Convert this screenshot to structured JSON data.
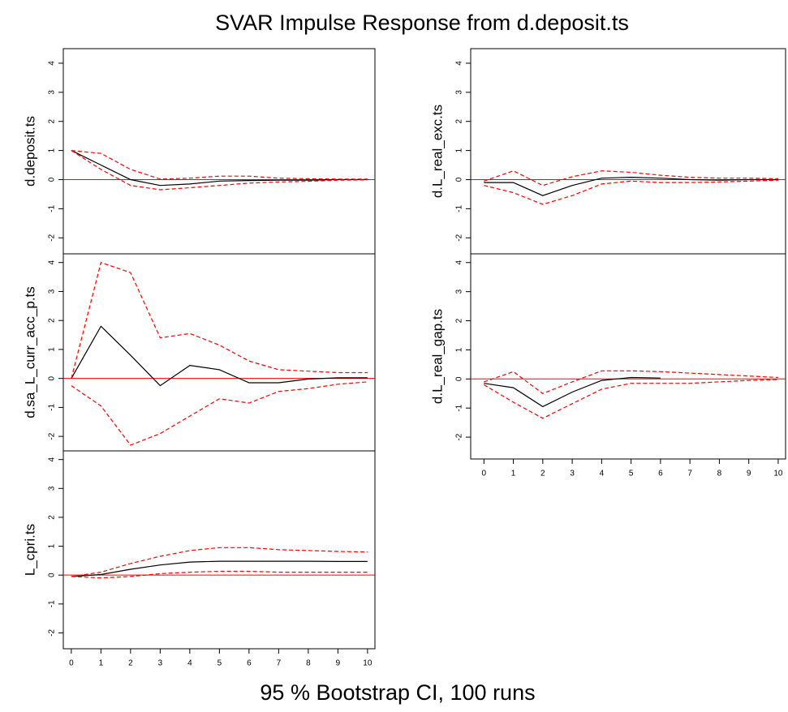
{
  "title": "SVAR Impulse Response from d.deposit.ts",
  "footer": "95 % Bootstrap CI,  100 runs",
  "chart_data": [
    {
      "type": "line",
      "ylabel": "d.deposit.ts",
      "x": [
        0,
        1,
        2,
        3,
        4,
        5,
        6,
        7,
        8,
        9,
        10
      ],
      "xlim": [
        -0.27,
        10.25
      ],
      "ylim": [
        -2.55,
        4.5
      ],
      "yticks": [
        -2,
        -1,
        0,
        1,
        2,
        3,
        4
      ],
      "hline": 0,
      "hline_color": "#ff0000",
      "series": [
        {
          "color": "#000000",
          "values": [
            1,
            0.5,
            0.0,
            -0.2,
            -0.15,
            -0.05,
            -0.03,
            -0.02,
            -0.02,
            0,
            0
          ]
        },
        {
          "color": "#ff0000",
          "linestyle": "dashed",
          "values": [
            1,
            0.9,
            0.35,
            0.02,
            0.05,
            0.12,
            0.12,
            0.05,
            0.03,
            0.02,
            0.02
          ]
        },
        {
          "color": "#ff0000",
          "linestyle": "dashed",
          "values": [
            1,
            0.35,
            -0.2,
            -0.35,
            -0.28,
            -0.2,
            -0.12,
            -0.08,
            -0.06,
            -0.02,
            -0.01
          ]
        }
      ]
    },
    {
      "type": "line",
      "ylabel": "d.sa_L_curr_acc_p.ts",
      "x": [
        0,
        1,
        2,
        3,
        4,
        5,
        6,
        7,
        8,
        9,
        10
      ],
      "xlim": [
        -0.27,
        10.25
      ],
      "ylim": [
        -2.5,
        4.3
      ],
      "yticks": [
        -2,
        -1,
        0,
        1,
        2,
        3,
        4
      ],
      "hline": 0,
      "hline_color": "#ff0000",
      "series": [
        {
          "color": "#000000",
          "values": [
            0,
            1.8,
            0.8,
            -0.25,
            0.45,
            0.3,
            -0.15,
            -0.15,
            -0.02,
            0.02,
            0.02
          ]
        },
        {
          "color": "#ff0000",
          "linestyle": "dashed",
          "values": [
            0,
            4.0,
            3.65,
            1.4,
            1.55,
            1.15,
            0.6,
            0.3,
            0.25,
            0.2,
            0.2
          ]
        },
        {
          "color": "#ff0000",
          "linestyle": "dashed",
          "values": [
            -0.25,
            -0.95,
            -2.3,
            -1.9,
            -1.3,
            -0.7,
            -0.85,
            -0.45,
            -0.35,
            -0.2,
            -0.12
          ]
        }
      ]
    },
    {
      "type": "line",
      "ylabel": "L_cpri.ts",
      "x": [
        0,
        1,
        2,
        3,
        4,
        5,
        6,
        7,
        8,
        9,
        10
      ],
      "xlim": [
        -0.27,
        10.25
      ],
      "xticks": [
        0,
        1,
        2,
        3,
        4,
        5,
        6,
        7,
        8,
        9,
        10
      ],
      "ylim": [
        -2.55,
        4.3
      ],
      "yticks": [
        -2,
        -1,
        0,
        1,
        2,
        3,
        4
      ],
      "hline": 0,
      "hline_color": "#ff0000",
      "series": [
        {
          "color": "#000000",
          "values": [
            -0.05,
            0.02,
            0.2,
            0.35,
            0.45,
            0.48,
            0.48,
            0.48,
            0.48,
            0.47,
            0.47
          ]
        },
        {
          "color": "#ff0000",
          "linestyle": "dashed",
          "values": [
            -0.05,
            0.1,
            0.4,
            0.65,
            0.85,
            0.95,
            0.95,
            0.88,
            0.85,
            0.82,
            0.8
          ]
        },
        {
          "color": "#ff0000",
          "linestyle": "dashed",
          "values": [
            -0.05,
            -0.1,
            -0.05,
            0.05,
            0.1,
            0.13,
            0.13,
            0.1,
            0.1,
            0.1,
            0.1
          ]
        }
      ]
    },
    {
      "type": "line",
      "ylabel": "d.L_real_exc.ts",
      "x": [
        0,
        1,
        2,
        3,
        4,
        5,
        6,
        7,
        8,
        9,
        10
      ],
      "xlim": [
        -0.45,
        10.25
      ],
      "ylim": [
        -2.55,
        4.5
      ],
      "yticks": [
        -2,
        -1,
        0,
        1,
        2,
        3,
        4
      ],
      "hline": 0,
      "hline_color": "#ff0000",
      "series": [
        {
          "color": "#000000",
          "values": [
            -0.1,
            -0.1,
            -0.55,
            -0.2,
            0.05,
            0.08,
            0.05,
            0,
            -0.02,
            0,
            0
          ]
        },
        {
          "color": "#ff0000",
          "linestyle": "dashed",
          "values": [
            -0.05,
            0.3,
            -0.2,
            0.1,
            0.3,
            0.25,
            0.15,
            0.08,
            0.05,
            0.05,
            0.03
          ]
        },
        {
          "color": "#ff0000",
          "linestyle": "dashed",
          "values": [
            -0.2,
            -0.45,
            -0.85,
            -0.55,
            -0.15,
            -0.05,
            -0.1,
            -0.1,
            -0.08,
            -0.05,
            -0.02
          ]
        }
      ]
    },
    {
      "type": "line",
      "ylabel": "d.L_real_gap.ts",
      "x": [
        0,
        1,
        2,
        3,
        4,
        5,
        6,
        7,
        8,
        9,
        10
      ],
      "xlim": [
        -0.45,
        10.25
      ],
      "xticks": [
        0,
        1,
        2,
        3,
        4,
        5,
        6,
        7,
        8,
        9,
        10
      ],
      "ylim": [
        -2.75,
        4.3
      ],
      "yticks": [
        -2,
        -1,
        0,
        1,
        2,
        3,
        4
      ],
      "hline": 0,
      "hline_color": "#ff0000",
      "series": [
        {
          "color": "#000000",
          "values": [
            -0.15,
            -0.3,
            -0.95,
            -0.45,
            -0.05,
            0.05,
            0.03,
            null,
            null,
            null,
            null
          ]
        },
        {
          "color": "#ff0000",
          "linestyle": "dashed",
          "values": [
            -0.1,
            0.25,
            -0.5,
            -0.1,
            0.28,
            0.28,
            0.25,
            0.2,
            0.15,
            0.1,
            0.05
          ]
        },
        {
          "color": "#ff0000",
          "linestyle": "dashed",
          "values": [
            -0.2,
            -0.8,
            -1.35,
            -0.85,
            -0.35,
            -0.15,
            -0.15,
            -0.15,
            -0.1,
            -0.05,
            -0.02
          ]
        }
      ]
    }
  ]
}
